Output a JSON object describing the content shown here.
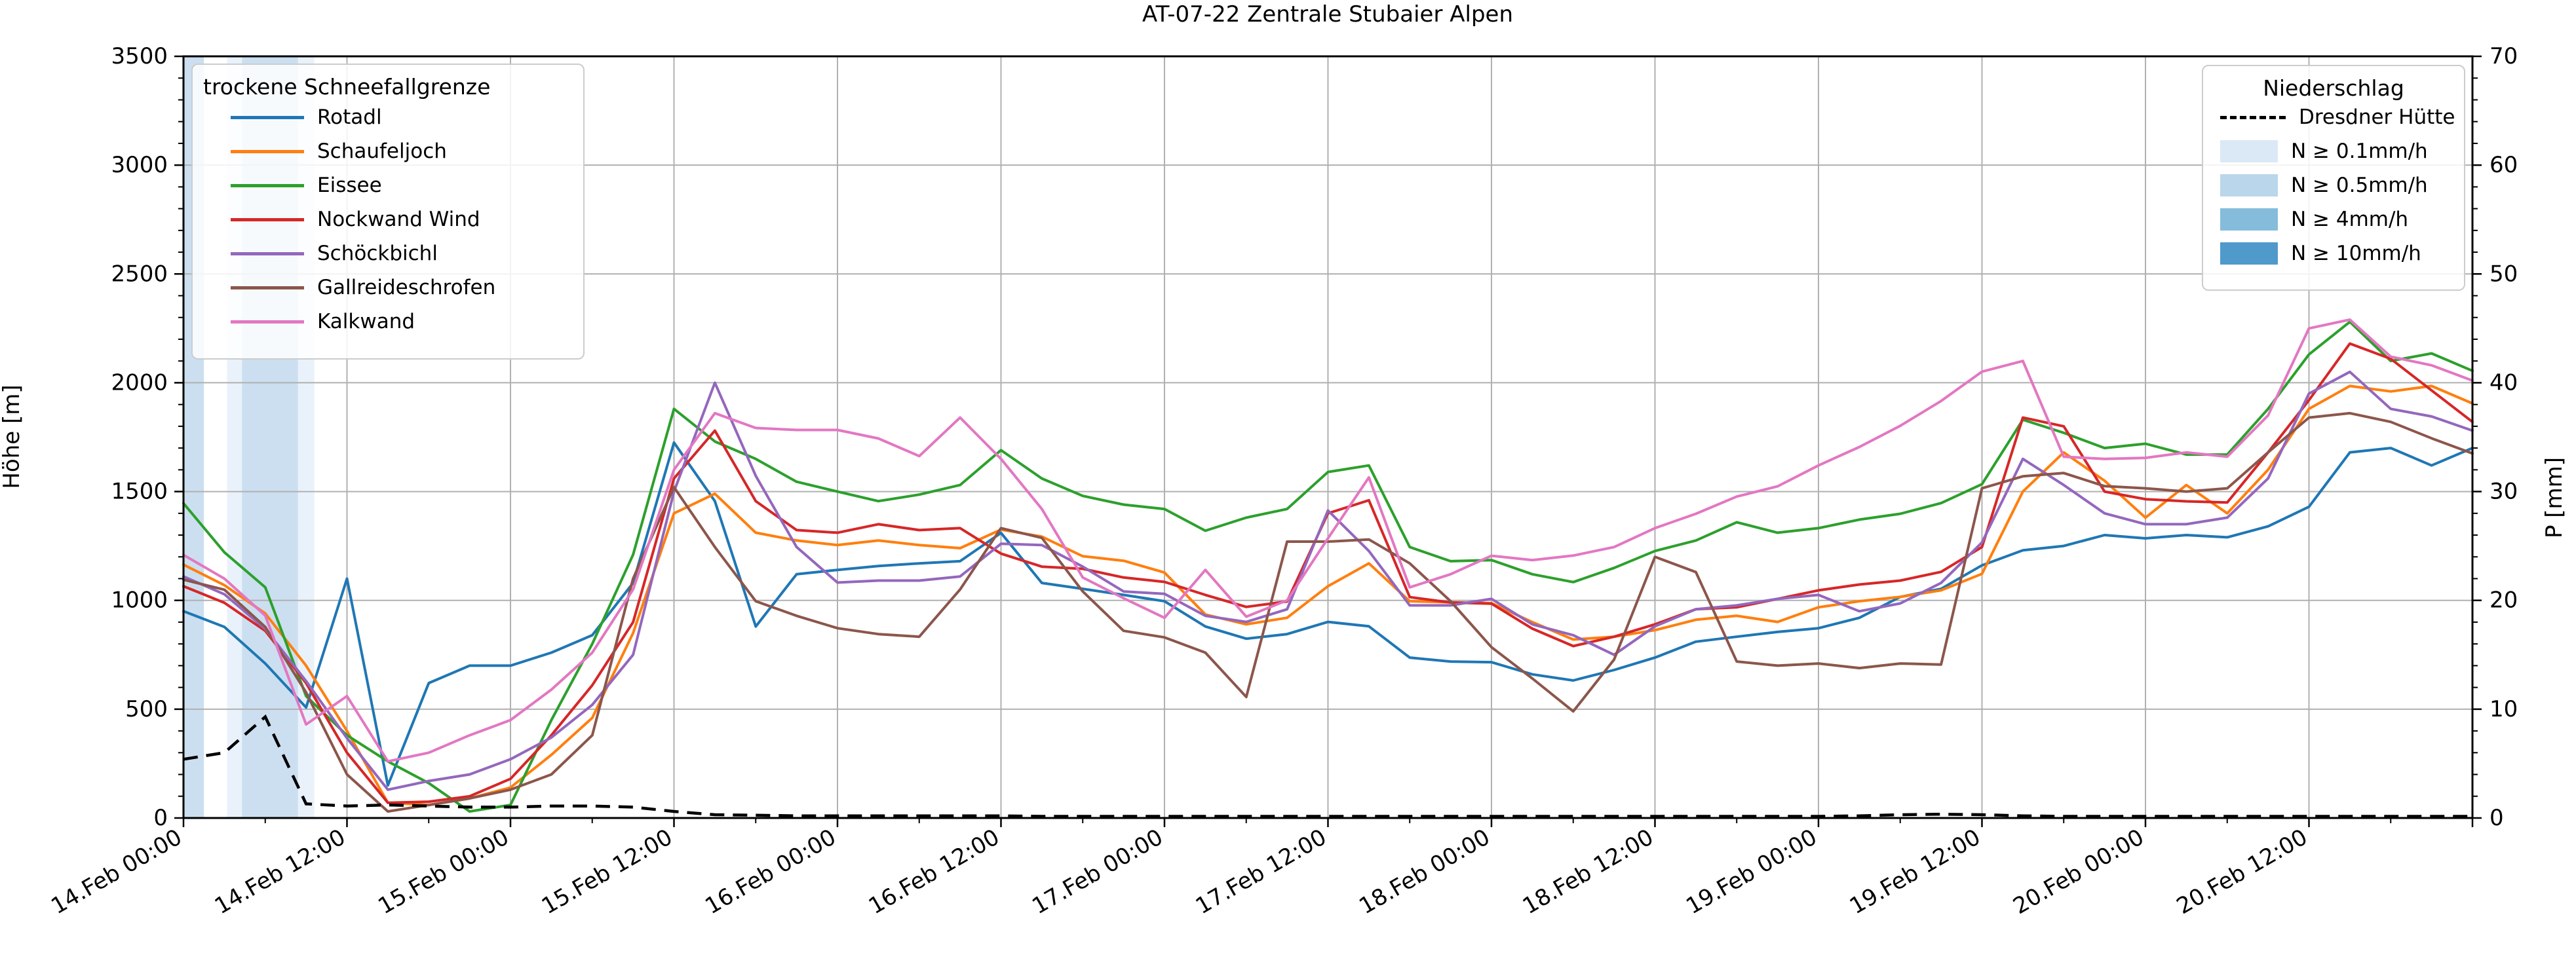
{
  "title": "AT-07-22 Zentrale Stubaier Alpen",
  "axes": {
    "left_label": "Höhe [m]",
    "right_label": "P [mm]",
    "left_ticks": [
      "0",
      "500",
      "1000",
      "1500",
      "2000",
      "2500",
      "3000",
      "3500"
    ],
    "right_ticks": [
      "0",
      "10",
      "20",
      "30",
      "40",
      "50",
      "60",
      "70"
    ],
    "left_range": [
      0,
      3500
    ],
    "right_range": [
      0,
      70
    ]
  },
  "legend_snowline": {
    "title": "trockene Schneefallgrenze",
    "entries": [
      {
        "label": "Rotadl",
        "color": "#1f77b4"
      },
      {
        "label": "Schaufeljoch",
        "color": "#ff7f0e"
      },
      {
        "label": "Eissee",
        "color": "#2ca02c"
      },
      {
        "label": "Nockwand Wind",
        "color": "#d62728"
      },
      {
        "label": "Schöckbichl",
        "color": "#9467bd"
      },
      {
        "label": "Gallreideschrofen",
        "color": "#8c564b"
      },
      {
        "label": "Kalkwand",
        "color": "#e377c2"
      }
    ]
  },
  "legend_precip": {
    "title": "Niederschlag",
    "dashed_label": "Dresdner Hütte",
    "classes": [
      {
        "label": "N ≥ 0.1mm/h",
        "color": "#dbe9f6"
      },
      {
        "label": "N ≥ 0.5mm/h",
        "color": "#bad6eb"
      },
      {
        "label": "N ≥ 4mm/h",
        "color": "#85bcdb"
      },
      {
        "label": "N ≥ 10mm/h",
        "color": "#4f9acb"
      }
    ]
  },
  "chart_data": {
    "type": "line",
    "title": "AT-07-22 Zentrale Stubaier Alpen",
    "xlabel": "",
    "ylabel": "Höhe [m]",
    "ylabel_right": "P [mm]",
    "ylim": [
      0,
      3500
    ],
    "ylim_right": [
      0,
      70
    ],
    "grid": true,
    "x_start": "14.Feb 00:00",
    "x_end": "21.Feb 00:00",
    "x_hours": [
      0,
      3,
      6,
      9,
      12,
      15,
      18,
      21,
      24,
      27,
      30,
      33,
      36,
      39,
      42,
      45,
      48,
      51,
      54,
      57,
      60,
      63,
      66,
      69,
      72,
      75,
      78,
      81,
      84,
      87,
      90,
      93,
      96,
      99,
      102,
      105,
      108,
      111,
      114,
      117,
      120,
      123,
      126,
      129,
      132,
      135,
      138,
      141,
      144,
      147,
      150,
      153,
      156,
      159,
      162,
      165,
      168
    ],
    "x_tick_hours": [
      0,
      12,
      24,
      36,
      48,
      60,
      72,
      84,
      96,
      108,
      120,
      132,
      144,
      156
    ],
    "x_tick_labels": [
      "14.Feb 00:00",
      "14.Feb 12:00",
      "15.Feb 00:00",
      "15.Feb 12:00",
      "16.Feb 00:00",
      "16.Feb 12:00",
      "17.Feb 00:00",
      "17.Feb 12:00",
      "18.Feb 00:00",
      "18.Feb 12:00",
      "19.Feb 00:00",
      "19.Feb 12:00",
      "20.Feb 00:00",
      "20.Feb 12:00"
    ],
    "series": [
      {
        "name": "Rotadl",
        "color": "#1f77b4",
        "axis": "left",
        "values": [
          950,
          878,
          710,
          508,
          1100,
          150,
          620,
          700,
          700,
          760,
          840,
          1080,
          1725,
          1456,
          880,
          1120,
          1140,
          1158,
          1170,
          1180,
          1310,
          1080,
          1053,
          1025,
          996,
          880,
          824,
          845,
          901,
          881,
          737,
          719,
          716,
          660,
          632,
          680,
          737,
          810,
          833,
          855,
          872,
          920,
          1016,
          1053,
          1161,
          1230,
          1250,
          1300,
          1285,
          1300,
          1290,
          1340,
          1430,
          1680,
          1700,
          1620,
          1700
        ]
      },
      {
        "name": "Schaufeljoch",
        "color": "#ff7f0e",
        "axis": "left",
        "values": [
          1164,
          1070,
          940,
          700,
          400,
          70,
          60,
          90,
          140,
          290,
          460,
          850,
          1400,
          1490,
          1311,
          1275,
          1254,
          1275,
          1254,
          1240,
          1325,
          1293,
          1203,
          1182,
          1128,
          935,
          890,
          920,
          1065,
          1170,
          996,
          991,
          987,
          900,
          820,
          833,
          863,
          911,
          929,
          901,
          968,
          996,
          1016,
          1046,
          1122,
          1500,
          1680,
          1550,
          1380,
          1530,
          1400,
          1600,
          1880,
          1985,
          1960,
          1985,
          1905
        ]
      },
      {
        "name": "Eissee",
        "color": "#2ca02c",
        "axis": "left",
        "values": [
          1446,
          1221,
          1060,
          560,
          380,
          260,
          160,
          30,
          60,
          450,
          800,
          1210,
          1880,
          1730,
          1650,
          1545,
          1500,
          1456,
          1486,
          1530,
          1690,
          1560,
          1480,
          1440,
          1420,
          1320,
          1380,
          1420,
          1590,
          1620,
          1245,
          1180,
          1185,
          1120,
          1084,
          1149,
          1227,
          1275,
          1359,
          1311,
          1332,
          1371,
          1398,
          1447,
          1534,
          1830,
          1770,
          1700,
          1720,
          1670,
          1670,
          1880,
          2130,
          2280,
          2100,
          2135,
          2055
        ]
      },
      {
        "name": "Nockwand Wind",
        "color": "#d62728",
        "axis": "left",
        "values": [
          1065,
          989,
          860,
          620,
          300,
          70,
          75,
          100,
          180,
          380,
          610,
          900,
          1560,
          1780,
          1456,
          1323,
          1311,
          1350,
          1323,
          1332,
          1215,
          1155,
          1145,
          1105,
          1085,
          1025,
          970,
          995,
          1400,
          1460,
          1015,
          990,
          985,
          870,
          790,
          833,
          890,
          959,
          968,
          1007,
          1046,
          1073,
          1091,
          1131,
          1245,
          1840,
          1800,
          1500,
          1465,
          1455,
          1450,
          1680,
          1920,
          2180,
          2110,
          1965,
          1820
        ]
      },
      {
        "name": "Schöckbichl",
        "color": "#9467bd",
        "axis": "left",
        "values": [
          1110,
          1028,
          869,
          629,
          367,
          130,
          170,
          200,
          270,
          370,
          520,
          750,
          1500,
          2000,
          1572,
          1245,
          1082,
          1091,
          1091,
          1110,
          1260,
          1254,
          1155,
          1041,
          1030,
          929,
          901,
          959,
          1413,
          1227,
          977,
          977,
          1007,
          890,
          840,
          750,
          881,
          959,
          977,
          1007,
          1025,
          950,
          986,
          1080,
          1266,
          1650,
          1530,
          1400,
          1350,
          1350,
          1380,
          1560,
          1950,
          2050,
          1880,
          1845,
          1780
        ]
      },
      {
        "name": "Gallreideschrofen",
        "color": "#8c564b",
        "axis": "left",
        "values": [
          1095,
          1049,
          878,
          577,
          200,
          30,
          60,
          90,
          130,
          200,
          380,
          1100,
          1520,
          1245,
          996,
          929,
          872,
          845,
          833,
          1050,
          1332,
          1287,
          1041,
          860,
          830,
          760,
          556,
          1270,
          1270,
          1280,
          1170,
          996,
          785,
          641,
          490,
          728,
          1200,
          1130,
          719,
          700,
          710,
          689,
          710,
          705,
          1515,
          1570,
          1585,
          1525,
          1515,
          1500,
          1515,
          1680,
          1840,
          1860,
          1820,
          1745,
          1675
        ]
      },
      {
        "name": "Kalkwand",
        "color": "#e377c2",
        "axis": "left",
        "values": [
          1209,
          1100,
          930,
          430,
          560,
          260,
          300,
          380,
          450,
          590,
          760,
          1050,
          1600,
          1860,
          1792,
          1783,
          1783,
          1744,
          1663,
          1840,
          1650,
          1420,
          1105,
          1010,
          920,
          1140,
          925,
          1000,
          1285,
          1565,
          1060,
          1120,
          1205,
          1185,
          1206,
          1245,
          1332,
          1398,
          1477,
          1524,
          1620,
          1705,
          1802,
          1916,
          2051,
          2100,
          1660,
          1650,
          1655,
          1680,
          1660,
          1850,
          2250,
          2290,
          2120,
          2080,
          2010
        ]
      }
    ],
    "dashed_series": {
      "name": "Dresdner Hütte",
      "color": "#000000",
      "axis": "right",
      "style": "dashed",
      "values": [
        5.4,
        6.0,
        9.3,
        1.3,
        1.1,
        1.2,
        1.1,
        1.0,
        1.0,
        1.1,
        1.1,
        1.0,
        0.6,
        0.3,
        0.25,
        0.2,
        0.2,
        0.2,
        0.2,
        0.2,
        0.2,
        0.15,
        0.15,
        0.15,
        0.15,
        0.15,
        0.15,
        0.15,
        0.15,
        0.15,
        0.15,
        0.15,
        0.15,
        0.15,
        0.15,
        0.15,
        0.15,
        0.15,
        0.15,
        0.15,
        0.15,
        0.2,
        0.3,
        0.35,
        0.3,
        0.2,
        0.15,
        0.15,
        0.15,
        0.15,
        0.15,
        0.15,
        0.15,
        0.15,
        0.15,
        0.15,
        0.15
      ]
    },
    "precip_bands": [
      {
        "from_hour": 0.0,
        "to_hour": 1.5,
        "class": "N ≥ 0.5mm/h",
        "color": "#cbdff0"
      },
      {
        "from_hour": 3.2,
        "to_hour": 9.6,
        "class": "N ≥ 0.1mm/h",
        "color": "#e9f2fa"
      },
      {
        "from_hour": 4.3,
        "to_hour": 8.4,
        "class": "N ≥ 0.5mm/h",
        "color": "#cbdff0"
      }
    ]
  }
}
